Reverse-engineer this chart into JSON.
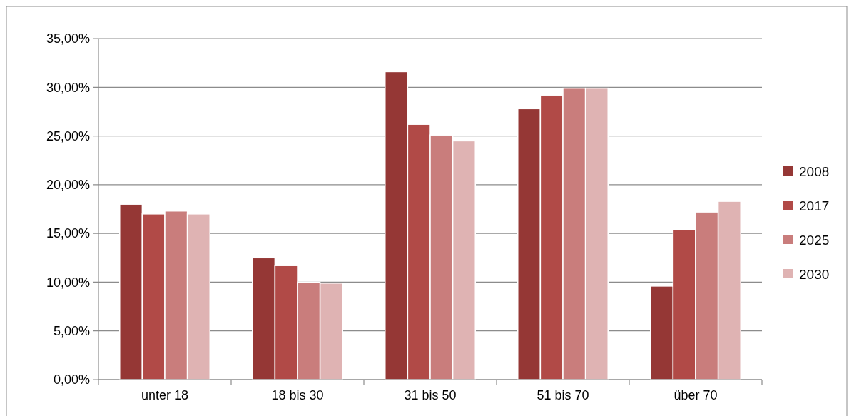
{
  "chart_data": {
    "type": "bar",
    "categories": [
      "unter 18",
      "18 bis 30",
      "31 bis 50",
      "51 bis 70",
      "über 70"
    ],
    "series": [
      {
        "name": "2008",
        "color": "#953735",
        "values": [
          18.0,
          12.5,
          31.6,
          27.8,
          9.6
        ]
      },
      {
        "name": "2017",
        "color": "#b14a47",
        "values": [
          17.0,
          11.7,
          26.2,
          29.2,
          15.4
        ]
      },
      {
        "name": "2025",
        "color": "#c97d7c",
        "values": [
          17.3,
          10.0,
          25.1,
          29.9,
          17.2
        ]
      },
      {
        "name": "2030",
        "color": "#dfb3b3",
        "values": [
          17.0,
          9.9,
          24.5,
          29.9,
          18.3
        ]
      }
    ],
    "ylim": [
      0,
      35
    ],
    "yticks": [
      {
        "value": 0,
        "label": "0,00%"
      },
      {
        "value": 5,
        "label": "5,00%"
      },
      {
        "value": 10,
        "label": "10,00%"
      },
      {
        "value": 15,
        "label": "15,00%"
      },
      {
        "value": 20,
        "label": "20,00%"
      },
      {
        "value": 25,
        "label": "25,00%"
      },
      {
        "value": 30,
        "label": "30,00%"
      },
      {
        "value": 35,
        "label": "35,00%"
      }
    ],
    "grid": "y",
    "legend": "right"
  }
}
